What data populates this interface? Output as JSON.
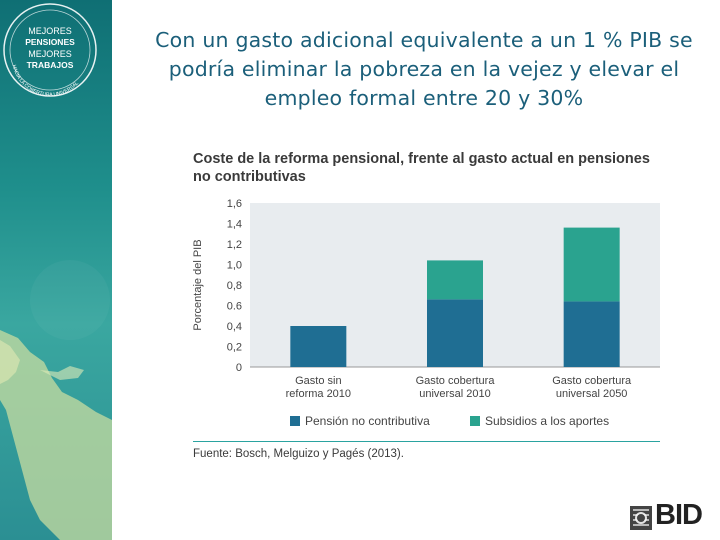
{
  "slide": {
    "title": "Con un gasto adicional equivalente a un 1 % PIB se podría eliminar la pobreza en la vejez y elevar el empleo formal entre 20 y 30%"
  },
  "logo": {
    "lines": [
      "MEJORES",
      "PENSIONES",
      "MEJORES",
      "TRABAJOS"
    ],
    "ring_text": "HACIA LA COBERTURA UNIVERSAL"
  },
  "brand": {
    "name": "BID"
  },
  "colors": {
    "series1": "#1f6e93",
    "series2": "#2aa38f",
    "plot_bg": "#e8ecef",
    "title": "#1b5f7a"
  },
  "chart_data": {
    "type": "bar",
    "stacked": true,
    "title": "Coste de la reforma pensional, frente al gasto actual en pensiones no contributivas",
    "ylabel": "Porcentaje del PIB",
    "xlabel": "",
    "ylim": [
      0,
      1.6
    ],
    "yticks": [
      "0",
      "0,2",
      "0,4",
      "0.6",
      "0,8",
      "1,0",
      "1,2",
      "1,4",
      "1,6"
    ],
    "categories": [
      [
        "Gasto sin",
        "reforma 2010"
      ],
      [
        "Gasto cobertura",
        "universal 2010"
      ],
      [
        "Gasto cobertura",
        "universal 2050"
      ]
    ],
    "series": [
      {
        "name": "Pensión no contributiva",
        "values": [
          0.4,
          0.66,
          0.64
        ]
      },
      {
        "name": "Subsidios a los aportes",
        "values": [
          0,
          0.38,
          0.72
        ]
      }
    ],
    "legend": "bottom",
    "grid": false
  },
  "source": "Fuente: Bosch, Melguizo y Pagés (2013)."
}
